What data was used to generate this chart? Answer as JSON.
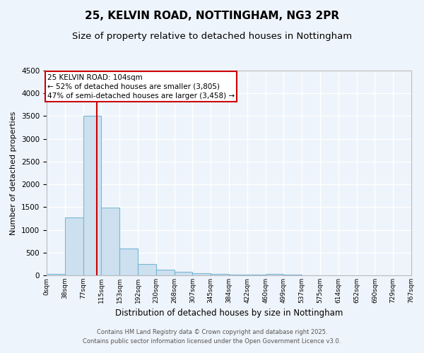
{
  "title": "25, KELVIN ROAD, NOTTINGHAM, NG3 2PR",
  "subtitle": "Size of property relative to detached houses in Nottingham",
  "xlabel": "Distribution of detached houses by size in Nottingham",
  "ylabel": "Number of detached properties",
  "bar_values": [
    30,
    1280,
    3510,
    1490,
    590,
    245,
    120,
    75,
    40,
    25,
    20,
    15,
    30,
    10,
    0,
    0,
    0,
    0,
    0,
    0
  ],
  "bin_labels": [
    "0sqm",
    "38sqm",
    "77sqm",
    "115sqm",
    "153sqm",
    "192sqm",
    "230sqm",
    "268sqm",
    "307sqm",
    "345sqm",
    "384sqm",
    "422sqm",
    "460sqm",
    "499sqm",
    "537sqm",
    "575sqm",
    "614sqm",
    "652sqm",
    "690sqm",
    "729sqm",
    "767sqm"
  ],
  "bar_color": "#cce0f0",
  "bar_edgecolor": "#7ab8d4",
  "property_line_x": 104,
  "property_line_label": "25 KELVIN ROAD: 104sqm",
  "annotation_line1": "← 52% of detached houses are smaller (3,805)",
  "annotation_line2": "47% of semi-detached houses are larger (3,458) →",
  "annotation_box_color": "#ffffff",
  "annotation_box_edgecolor": "#cc0000",
  "red_line_color": "#cc0000",
  "ylim": [
    0,
    4500
  ],
  "yticks": [
    0,
    500,
    1000,
    1500,
    2000,
    2500,
    3000,
    3500,
    4000,
    4500
  ],
  "footer_line1": "Contains HM Land Registry data © Crown copyright and database right 2025.",
  "footer_line2": "Contains public sector information licensed under the Open Government Licence v3.0.",
  "background_color": "#eef4fb",
  "grid_color": "#ffffff",
  "title_fontsize": 11,
  "subtitle_fontsize": 9.5,
  "bin_width": 38
}
